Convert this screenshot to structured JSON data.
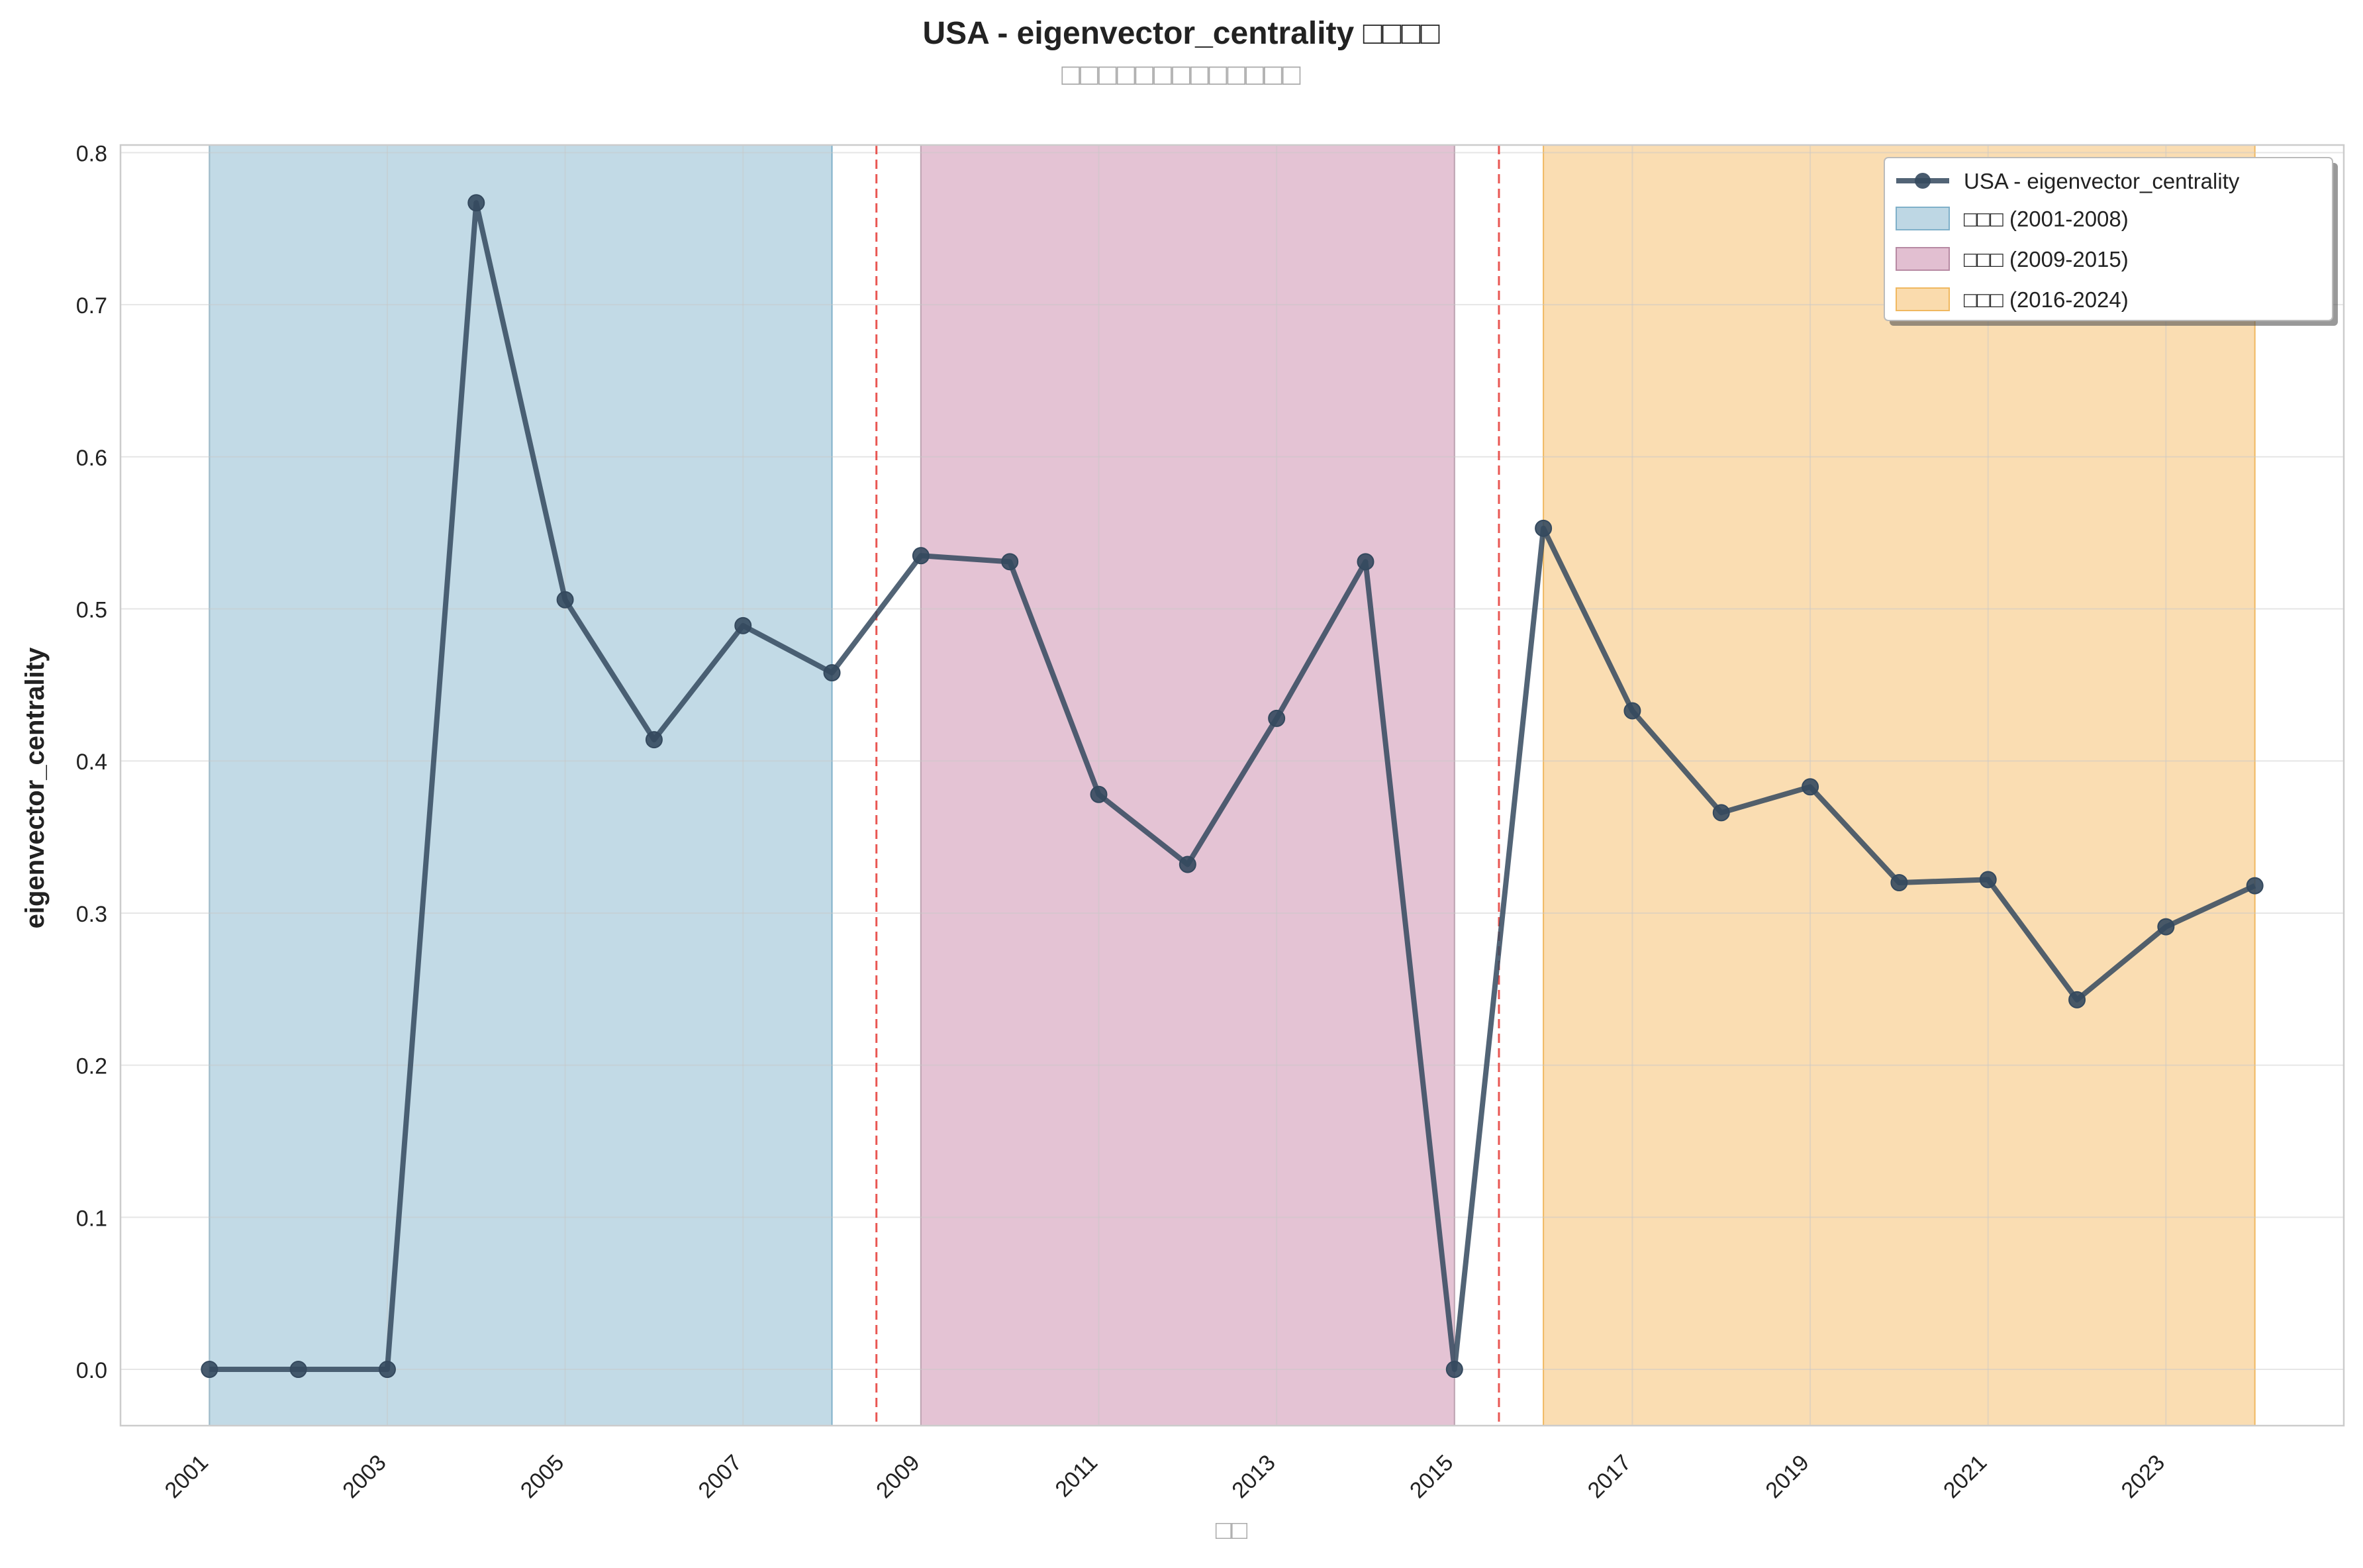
{
  "chart_data": {
    "type": "line",
    "title": "USA - eigenvector_centrality □□□□",
    "subtitle": "□□□□□□□□□□□□□",
    "xlabel": "□□",
    "ylabel": "eigenvector_centrality",
    "xlim": [
      2000.0,
      2025.0
    ],
    "ylim": [
      -0.037,
      0.805
    ],
    "x_ticks": [
      2001,
      2003,
      2005,
      2007,
      2009,
      2011,
      2013,
      2015,
      2017,
      2019,
      2021,
      2023
    ],
    "y_ticks": [
      0.0,
      0.1,
      0.2,
      0.3,
      0.4,
      0.5,
      0.6,
      0.7,
      0.8
    ],
    "y_tick_labels": [
      "0.0",
      "0.1",
      "0.2",
      "0.3",
      "0.4",
      "0.5",
      "0.6",
      "0.7",
      "0.8"
    ],
    "grid": true,
    "legend_position": "top-right",
    "series": [
      {
        "name": "USA - eigenvector_centrality",
        "color": "#34495e",
        "x": [
          2001,
          2002,
          2003,
          2004,
          2005,
          2006,
          2007,
          2008,
          2009,
          2010,
          2011,
          2012,
          2013,
          2014,
          2015,
          2016,
          2017,
          2018,
          2019,
          2020,
          2021,
          2022,
          2023,
          2024
        ],
        "y": [
          0.0,
          0.0,
          0.0,
          0.767,
          0.506,
          0.414,
          0.489,
          0.458,
          0.535,
          0.531,
          0.378,
          0.332,
          0.428,
          0.531,
          0.0,
          0.553,
          0.433,
          0.366,
          0.383,
          0.32,
          0.322,
          0.243,
          0.291,
          0.318
        ]
      }
    ],
    "periods": [
      {
        "label": "□□□ (2001-2008)",
        "start": 2001,
        "end": 2008,
        "color": "#a8cadb",
        "edge": "#7fb0c9"
      },
      {
        "label": "□□□ (2009-2015)",
        "start": 2009,
        "end": 2015,
        "color": "#d8aac2",
        "edge": "#b78aa3"
      },
      {
        "label": "□□□ (2016-2024)",
        "start": 2016,
        "end": 2024,
        "color": "#f8cf92",
        "edge": "#f0b860"
      }
    ],
    "dividers": [
      2008.5,
      2015.5
    ],
    "divider_color": "#e53935"
  }
}
